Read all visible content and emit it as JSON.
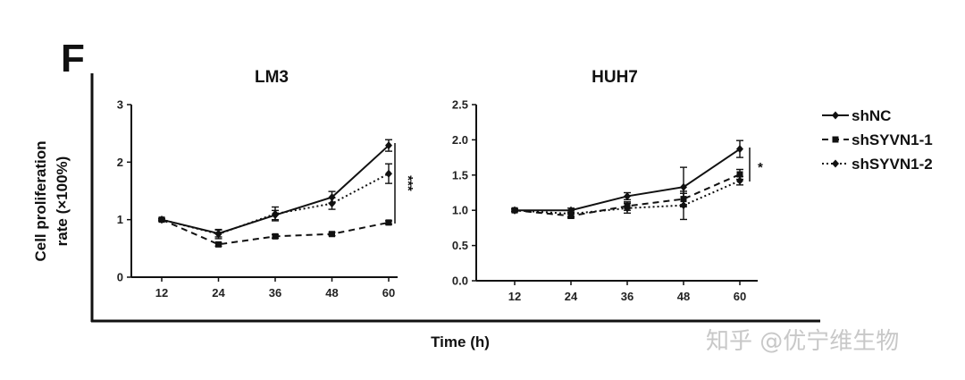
{
  "panel_label": "F",
  "figure": {
    "ylabel_line1": "Cell proliferation",
    "ylabel_line2": "rate (×100%)",
    "xlabel": "Time (h)"
  },
  "legend": [
    {
      "name": "shNC",
      "marker": "diamond",
      "dash": "solid"
    },
    {
      "name": "shSYVN1-1",
      "marker": "square",
      "dash": "dashed"
    },
    {
      "name": "shSYVN1-2",
      "marker": "diamond",
      "dash": "dotted"
    }
  ],
  "watermark": "知乎 @优宁维生物",
  "chart_data": [
    {
      "type": "line",
      "title": "LM3",
      "x": [
        12,
        24,
        36,
        48,
        60
      ],
      "xticks": [
        "12",
        "24",
        "36",
        "48",
        "60"
      ],
      "ylim": [
        0,
        3
      ],
      "yticks": [
        "0",
        "1",
        "2",
        "3"
      ],
      "series": [
        {
          "name": "shNC",
          "values": [
            1.0,
            0.76,
            1.08,
            1.39,
            2.29
          ],
          "errors": [
            0.02,
            0.06,
            0.08,
            0.1,
            0.1
          ]
        },
        {
          "name": "shSYVN1-1",
          "values": [
            1.0,
            0.57,
            0.71,
            0.75,
            0.95
          ],
          "errors": [
            0.02,
            0.03,
            0.03,
            0.03,
            0.03
          ]
        },
        {
          "name": "shSYVN1-2",
          "values": [
            1.0,
            0.75,
            1.1,
            1.28,
            1.8
          ],
          "errors": [
            0.02,
            0.08,
            0.12,
            0.1,
            0.17
          ]
        }
      ],
      "significance": "***"
    },
    {
      "type": "line",
      "title": "HUH7",
      "x": [
        12,
        24,
        36,
        48,
        60
      ],
      "xticks": [
        "12",
        "24",
        "36",
        "48",
        "60"
      ],
      "ylim": [
        0,
        2.5
      ],
      "yticks": [
        "0.0",
        "0.5",
        "1.0",
        "1.5",
        "2.0",
        "2.5"
      ],
      "series": [
        {
          "name": "shNC",
          "values": [
            1.0,
            1.0,
            1.2,
            1.33,
            1.87
          ],
          "errors": [
            0.02,
            0.03,
            0.05,
            0.28,
            0.12
          ]
        },
        {
          "name": "shSYVN1-1",
          "values": [
            1.0,
            0.92,
            1.06,
            1.16,
            1.51
          ],
          "errors": [
            0.02,
            0.03,
            0.06,
            0.08,
            0.07
          ]
        },
        {
          "name": "shSYVN1-2",
          "values": [
            1.0,
            0.95,
            1.03,
            1.07,
            1.42
          ],
          "errors": [
            0.02,
            0.04,
            0.07,
            0.2,
            0.06
          ]
        }
      ],
      "significance": "*"
    }
  ]
}
